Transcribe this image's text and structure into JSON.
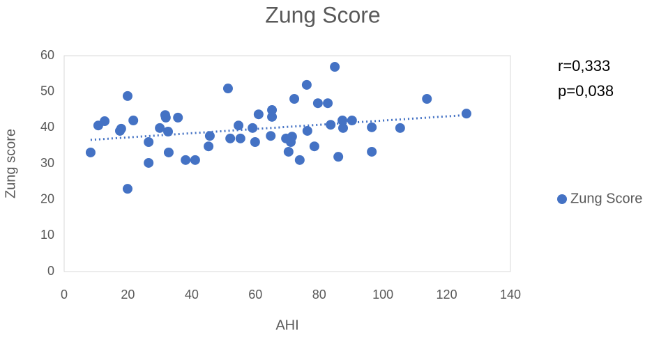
{
  "chart_data": {
    "type": "scatter",
    "title": "Zung Score",
    "x_label": "AHI",
    "y_label": "Zung score",
    "series": [
      {
        "name": "Zung Score",
        "color": "#4472c4",
        "x": [
          8.3,
          10.7,
          12.7,
          17.5,
          17.9,
          19.9,
          19.9,
          21.7,
          26.5,
          26.5,
          30,
          31.7,
          31.9,
          32.6,
          32.8,
          35.7,
          38.1,
          41.1,
          45.3,
          45.7,
          51.4,
          52.1,
          54.7,
          55.3,
          59.1,
          59.9,
          61,
          64.8,
          65.2,
          65.2,
          69.6,
          70.4,
          71.1,
          71.5,
          72.2,
          73.9,
          76.1,
          76.3,
          78.5,
          79.6,
          82.7,
          83.6,
          84.9,
          86,
          87.3,
          87.5,
          90.3,
          96.5,
          96.5,
          105.4,
          113.8,
          126.2
        ],
        "values": [
          33.1,
          40.6,
          41.8,
          39.1,
          39.7,
          48.8,
          23,
          42,
          36,
          30.2,
          39.9,
          43.5,
          42.8,
          38.9,
          33.1,
          42.8,
          31,
          31,
          34.8,
          37.7,
          50.9,
          37,
          40.6,
          37,
          39.9,
          36,
          43.7,
          37.7,
          44.9,
          43,
          37,
          33.3,
          36,
          37.5,
          48,
          31,
          51.9,
          39.1,
          34.8,
          46.8,
          46.8,
          40.8,
          56.9,
          31.9,
          42,
          39.9,
          42,
          40.1,
          33.3,
          39.9,
          48,
          43.9
        ]
      }
    ],
    "trendline": {
      "x": [
        8.3,
        126.2
      ],
      "values": [
        36.6,
        43.5
      ]
    },
    "annotations": [
      "r=0,333",
      "p=0,038"
    ],
    "xlim": [
      0,
      140
    ],
    "xticks": [
      0,
      20,
      40,
      60,
      80,
      100,
      120,
      140
    ],
    "ylim": [
      0,
      60
    ],
    "yticks": [
      0,
      10,
      20,
      30,
      40,
      50,
      60
    ],
    "legend": "right",
    "grid": false
  }
}
